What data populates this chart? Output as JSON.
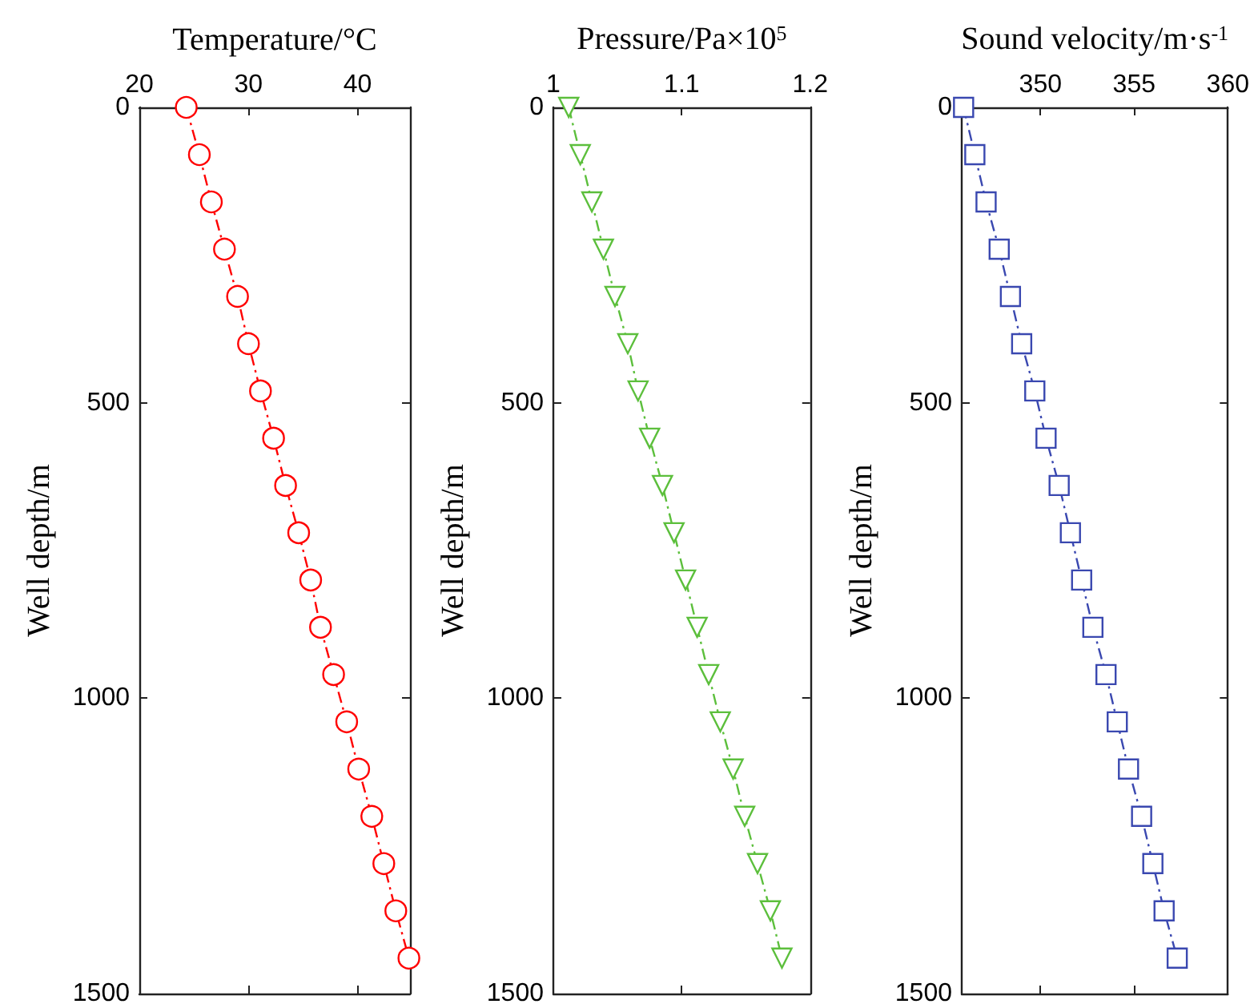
{
  "chart_data": [
    {
      "type": "line",
      "xlabel": "Temperature/°C",
      "ylabel": "Well depth/m",
      "color": "#ff0000",
      "marker": "circle",
      "line_style": "dashed",
      "x": [
        24.3,
        25.5,
        26.6,
        27.8,
        29.0,
        30.0,
        31.1,
        32.3,
        33.4,
        34.6,
        35.7,
        36.6,
        37.8,
        39.0,
        40.1,
        41.3,
        42.4,
        43.5,
        44.7
      ],
      "values": [
        0,
        80,
        160,
        240,
        320,
        400,
        480,
        560,
        640,
        720,
        800,
        880,
        960,
        1040,
        1120,
        1200,
        1280,
        1360,
        1440
      ],
      "xlim": [
        20,
        44.8
      ],
      "xticks": [
        20,
        30,
        40
      ],
      "ylim": [
        1500,
        0
      ],
      "yticks": [
        0,
        500,
        1000,
        1500
      ]
    },
    {
      "type": "line",
      "xlabel": "Pressure/Pa×10$^{5}$",
      "ylabel": "Well depth/m",
      "color": "#5cbf3c",
      "marker": "triangle",
      "line_style": "dashed",
      "x": [
        1.012,
        1.021,
        1.03,
        1.039,
        1.048,
        1.058,
        1.066,
        1.075,
        1.085,
        1.094,
        1.103,
        1.112,
        1.121,
        1.13,
        1.14,
        1.149,
        1.159,
        1.169,
        1.178
      ],
      "values": [
        0,
        80,
        160,
        240,
        320,
        400,
        480,
        560,
        640,
        720,
        800,
        880,
        960,
        1040,
        1120,
        1200,
        1280,
        1360,
        1440
      ],
      "xlim": [
        1,
        1.2
      ],
      "xticks": [
        1,
        1.1,
        1.2
      ],
      "ylim": [
        1500,
        0
      ],
      "yticks": [
        0,
        500,
        1000,
        1500
      ]
    },
    {
      "type": "line",
      "xlabel": "Sound velocity/m·s$^{-1}$",
      "ylabel": "Well depth/m",
      "color": "#3a48b0",
      "marker": "square",
      "line_style": "dashed",
      "x": [
        345.9,
        346.5,
        347.1,
        347.8,
        348.4,
        349.0,
        349.7,
        350.3,
        351.0,
        351.6,
        352.2,
        352.8,
        353.5,
        354.1,
        354.7,
        355.4,
        356.0,
        356.6,
        357.3
      ],
      "values": [
        0,
        80,
        160,
        240,
        320,
        400,
        480,
        560,
        640,
        720,
        800,
        880,
        960,
        1040,
        1120,
        1200,
        1280,
        1360,
        1440
      ],
      "xlim": [
        345.8,
        360
      ],
      "xticks": [
        350,
        355,
        360
      ],
      "ylim": [
        1500,
        0
      ],
      "yticks": [
        0,
        500,
        1000,
        1500
      ]
    }
  ]
}
